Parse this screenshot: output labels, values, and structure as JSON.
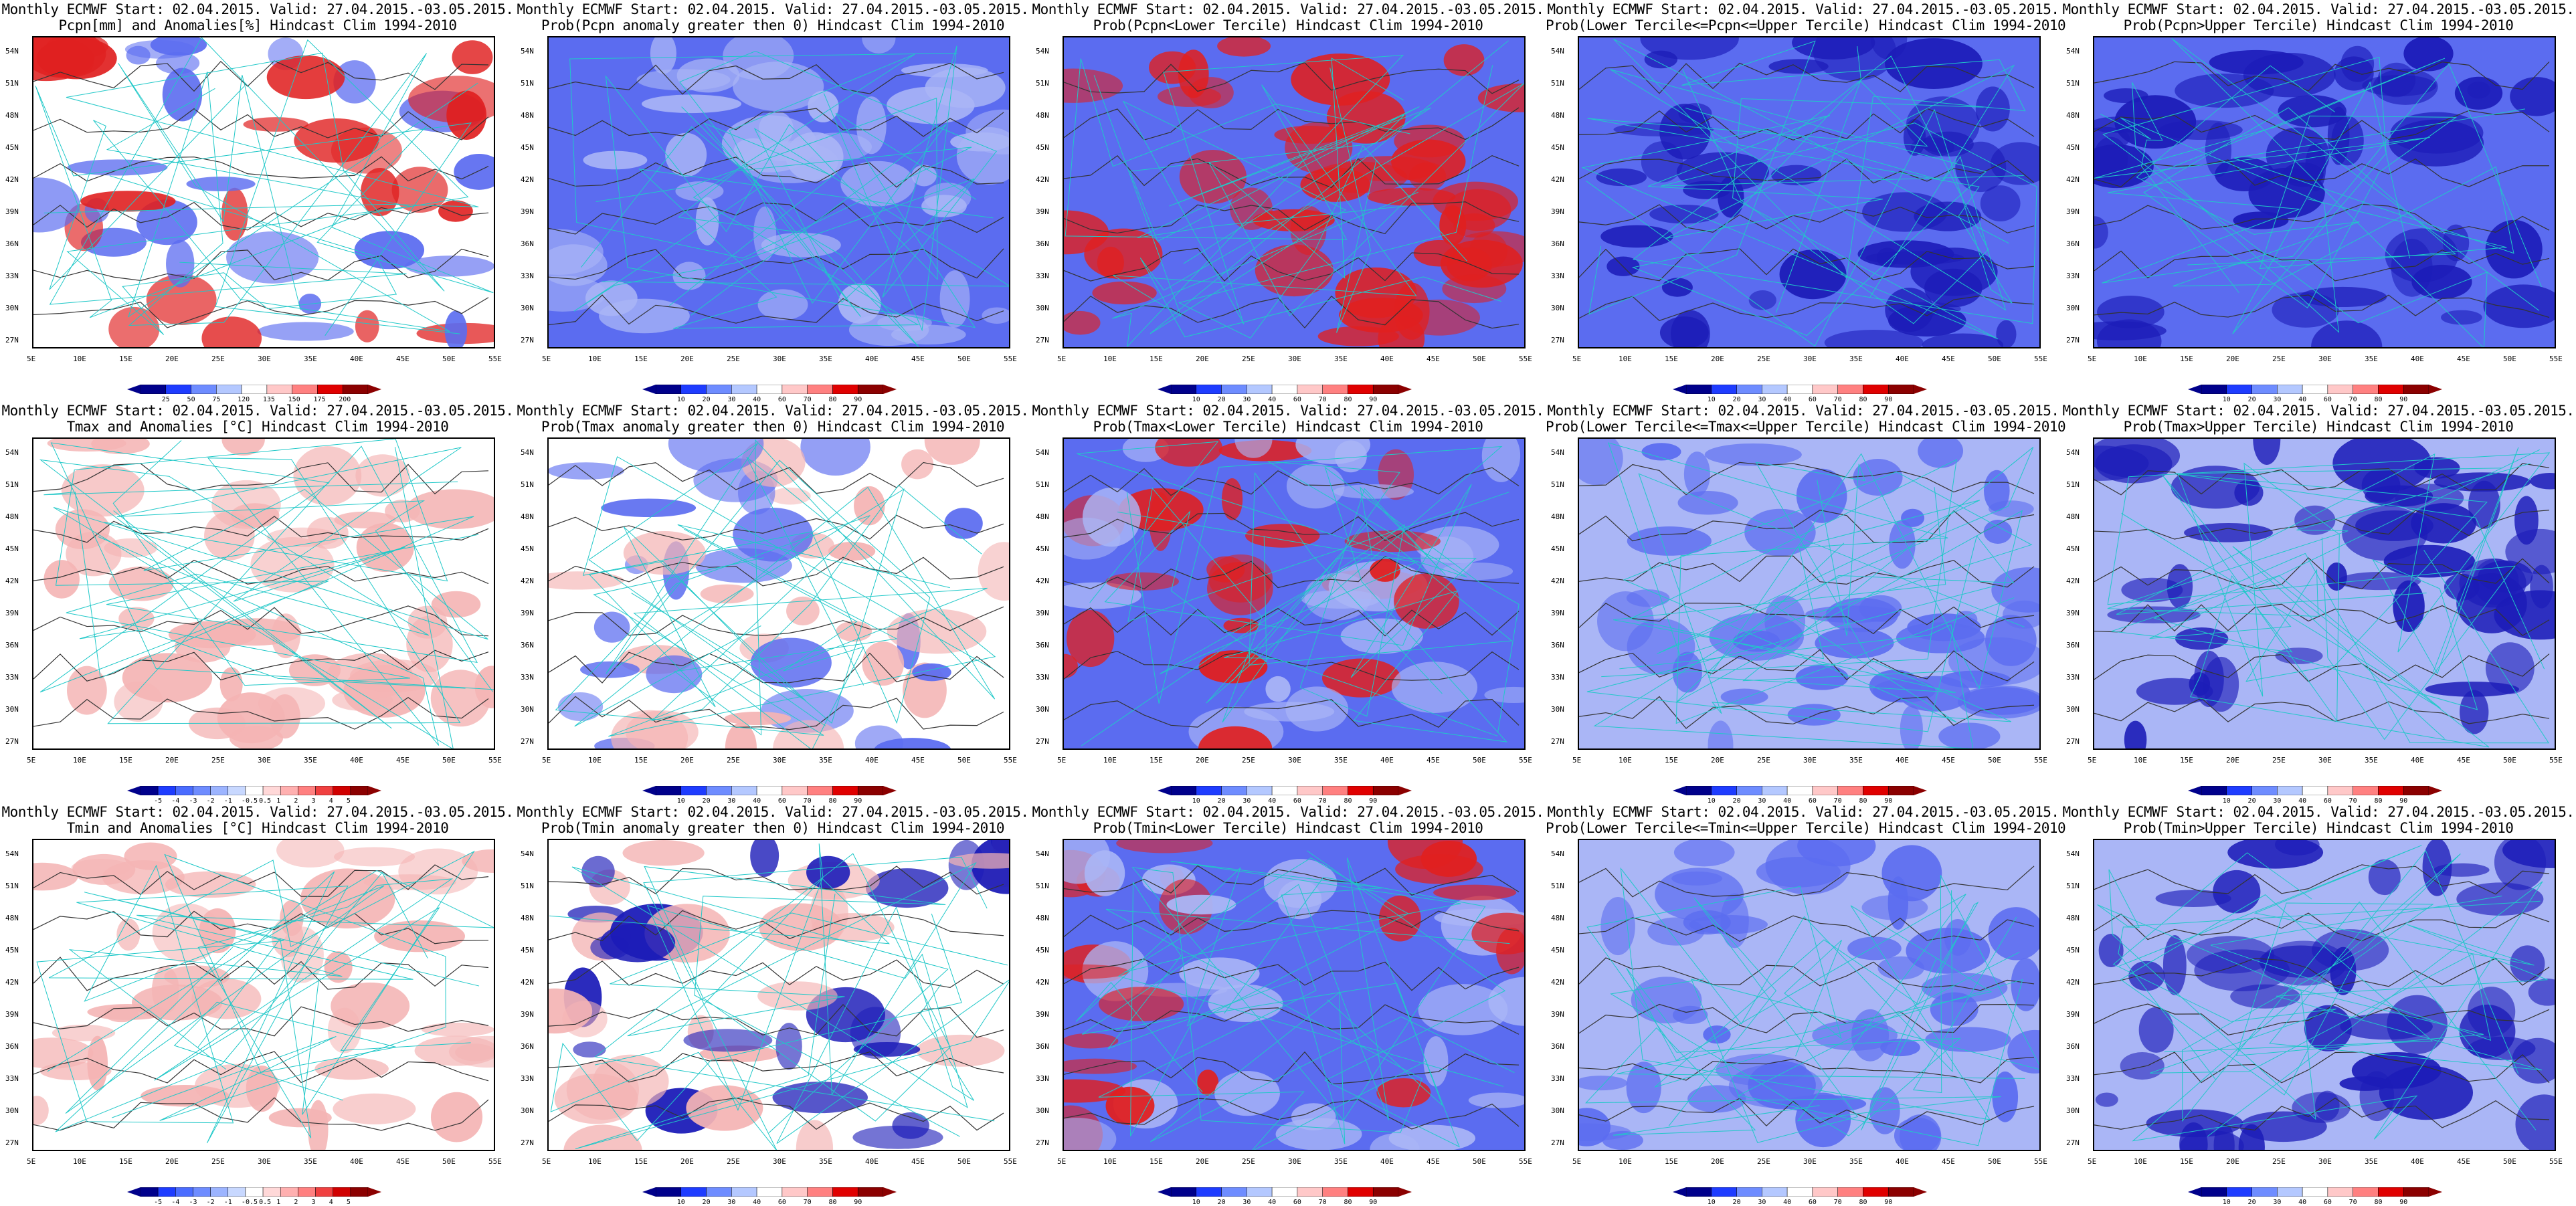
{
  "panels": [
    {
      "row": 0,
      "col": 0,
      "title1": "Monthly ECMWF Start: 02.04.2015. Valid: 27.04.2015.-03.05.2015.",
      "title2": "Pcpn[mm] and Anomalies[%] Hindcast Clim 1994-2010",
      "scale": "pcpn",
      "base": "white",
      "blobs": [
        "red",
        "blue"
      ]
    },
    {
      "row": 0,
      "col": 1,
      "title1": "Monthly ECMWF Start: 02.04.2015. Valid: 27.04.2015.-03.05.2015.",
      "title2": "Prob(Pcpn anomaly greater then 0) Hindcast Clim 1994-2010",
      "scale": "prob",
      "base": "blue",
      "blobs": [
        "lightblue"
      ]
    },
    {
      "row": 0,
      "col": 2,
      "title1": "Monthly ECMWF Start: 02.04.2015. Valid: 27.04.2015.-03.05.2015.",
      "title2": "Prob(Pcpn<Lower Tercile) Hindcast Clim 1994-2010",
      "scale": "prob",
      "base": "blue",
      "blobs": [
        "red"
      ]
    },
    {
      "row": 0,
      "col": 3,
      "title1": "Monthly ECMWF Start: 02.04.2015. Valid: 27.04.2015.-03.05.2015.",
      "title2": "Prob(Lower Tercile<=Pcpn<=Upper Tercile) Hindcast Clim 1994-2010",
      "scale": "prob",
      "base": "blue",
      "blobs": [
        "darkblue"
      ]
    },
    {
      "row": 0,
      "col": 4,
      "title1": "Monthly ECMWF Start: 02.04.2015. Valid: 27.04.2015.-03.05.2015.",
      "title2": "Prob(Pcpn>Upper Tercile) Hindcast Clim 1994-2010",
      "scale": "prob",
      "base": "blue",
      "blobs": [
        "darkblue"
      ]
    },
    {
      "row": 1,
      "col": 0,
      "title1": "Monthly ECMWF Start: 02.04.2015. Valid: 27.04.2015.-03.05.2015.",
      "title2": "Tmax and Anomalies [°C] Hindcast Clim 1994-2010",
      "scale": "anom",
      "base": "white",
      "blobs": [
        "lightred"
      ]
    },
    {
      "row": 1,
      "col": 1,
      "title1": "Monthly ECMWF Start: 02.04.2015. Valid: 27.04.2015.-03.05.2015.",
      "title2": "Prob(Tmax anomaly greater then 0) Hindcast Clim 1994-2010",
      "scale": "prob",
      "base": "white",
      "blobs": [
        "lightred",
        "blue"
      ]
    },
    {
      "row": 1,
      "col": 2,
      "title1": "Monthly ECMWF Start: 02.04.2015. Valid: 27.04.2015.-03.05.2015.",
      "title2": "Prob(Tmax<Lower Tercile) Hindcast Clim 1994-2010",
      "scale": "prob",
      "base": "blue",
      "blobs": [
        "lightblue",
        "red"
      ]
    },
    {
      "row": 1,
      "col": 3,
      "title1": "Monthly ECMWF Start: 02.04.2015. Valid: 27.04.2015.-03.05.2015.",
      "title2": "Prob(Lower Tercile<=Tmax<=Upper Tercile) Hindcast Clim 1994-2010",
      "scale": "prob",
      "base": "lightblue",
      "blobs": [
        "blue"
      ]
    },
    {
      "row": 1,
      "col": 4,
      "title1": "Monthly ECMWF Start: 02.04.2015. Valid: 27.04.2015.-03.05.2015.",
      "title2": "Prob(Tmax>Upper Tercile) Hindcast Clim 1994-2010",
      "scale": "prob",
      "base": "lightblue",
      "blobs": [
        "darkblue"
      ]
    },
    {
      "row": 2,
      "col": 0,
      "title1": "Monthly ECMWF Start: 02.04.2015. Valid: 27.04.2015.-03.05.2015.",
      "title2": "Tmin and Anomalies [°C] Hindcast Clim 1994-2010",
      "scale": "anom",
      "base": "white",
      "blobs": [
        "lightred"
      ]
    },
    {
      "row": 2,
      "col": 1,
      "title1": "Monthly ECMWF Start: 02.04.2015. Valid: 27.04.2015.-03.05.2015.",
      "title2": "Prob(Tmin anomaly greater then 0) Hindcast Clim 1994-2010",
      "scale": "prob",
      "base": "white",
      "blobs": [
        "lightred",
        "darkblue"
      ]
    },
    {
      "row": 2,
      "col": 2,
      "title1": "Monthly ECMWF Start: 02.04.2015. Valid: 27.04.2015.-03.05.2015.",
      "title2": "Prob(Tmin<Lower Tercile) Hindcast Clim 1994-2010",
      "scale": "prob",
      "base": "blue",
      "blobs": [
        "lightblue",
        "red"
      ]
    },
    {
      "row": 2,
      "col": 3,
      "title1": "Monthly ECMWF Start: 02.04.2015. Valid: 27.04.2015.-03.05.2015.",
      "title2": "Prob(Lower Tercile<=Tmin<=Upper Tercile) Hindcast Clim 1994-2010",
      "scale": "prob",
      "base": "lightblue",
      "blobs": [
        "blue"
      ]
    },
    {
      "row": 2,
      "col": 4,
      "title1": "Monthly ECMWF Start: 02.04.2015. Valid: 27.04.2015.-03.05.2015.",
      "title2": "Prob(Tmin>Upper Tercile) Hindcast Clim 1994-2010",
      "scale": "prob",
      "base": "lightblue",
      "blobs": [
        "darkblue"
      ]
    }
  ],
  "lat_labels": [
    "54N",
    "51N",
    "48N",
    "45N",
    "42N",
    "39N",
    "36N",
    "33N",
    "30N",
    "27N"
  ],
  "lon_labels": [
    "5E",
    "10E",
    "15E",
    "20E",
    "25E",
    "30E",
    "35E",
    "40E",
    "45E",
    "50E",
    "55E"
  ],
  "scales": {
    "pcpn": {
      "labels": [
        "25",
        "50",
        "75",
        "120",
        "135",
        "150",
        "175",
        "200"
      ],
      "colors": [
        "#00008b",
        "#1e3cff",
        "#6e8cff",
        "#b4c8ff",
        "#ffffff",
        "#ffc8c8",
        "#ff8080",
        "#e00000",
        "#8b0000"
      ]
    },
    "prob": {
      "labels": [
        "10",
        "20",
        "30",
        "40",
        "60",
        "70",
        "80",
        "90"
      ],
      "colors": [
        "#00008b",
        "#1e3cff",
        "#6e8cff",
        "#b4c8ff",
        "#ffffff",
        "#ffc8c8",
        "#ff8080",
        "#e00000",
        "#8b0000"
      ]
    },
    "anom": {
      "labels": [
        "-5",
        "-4",
        "-3",
        "-2",
        "-1",
        "-0.5",
        "0.5",
        "1",
        "2",
        "3",
        "4",
        "5"
      ],
      "colors": [
        "#00008b",
        "#1e3cff",
        "#4a6cff",
        "#6e8cff",
        "#9cb4ff",
        "#c8d8ff",
        "#ffffff",
        "#ffd8d8",
        "#ffb0b0",
        "#ff8080",
        "#f04040",
        "#d00000",
        "#8b0000"
      ]
    }
  },
  "fills": {
    "white": "#ffffff",
    "blue": "#5b6cf0",
    "lightblue": "#aab6f6",
    "darkblue": "#1c1cb8",
    "red": "#e02020",
    "lightred": "#f4b4b4",
    "darkred": "#9b0000"
  }
}
